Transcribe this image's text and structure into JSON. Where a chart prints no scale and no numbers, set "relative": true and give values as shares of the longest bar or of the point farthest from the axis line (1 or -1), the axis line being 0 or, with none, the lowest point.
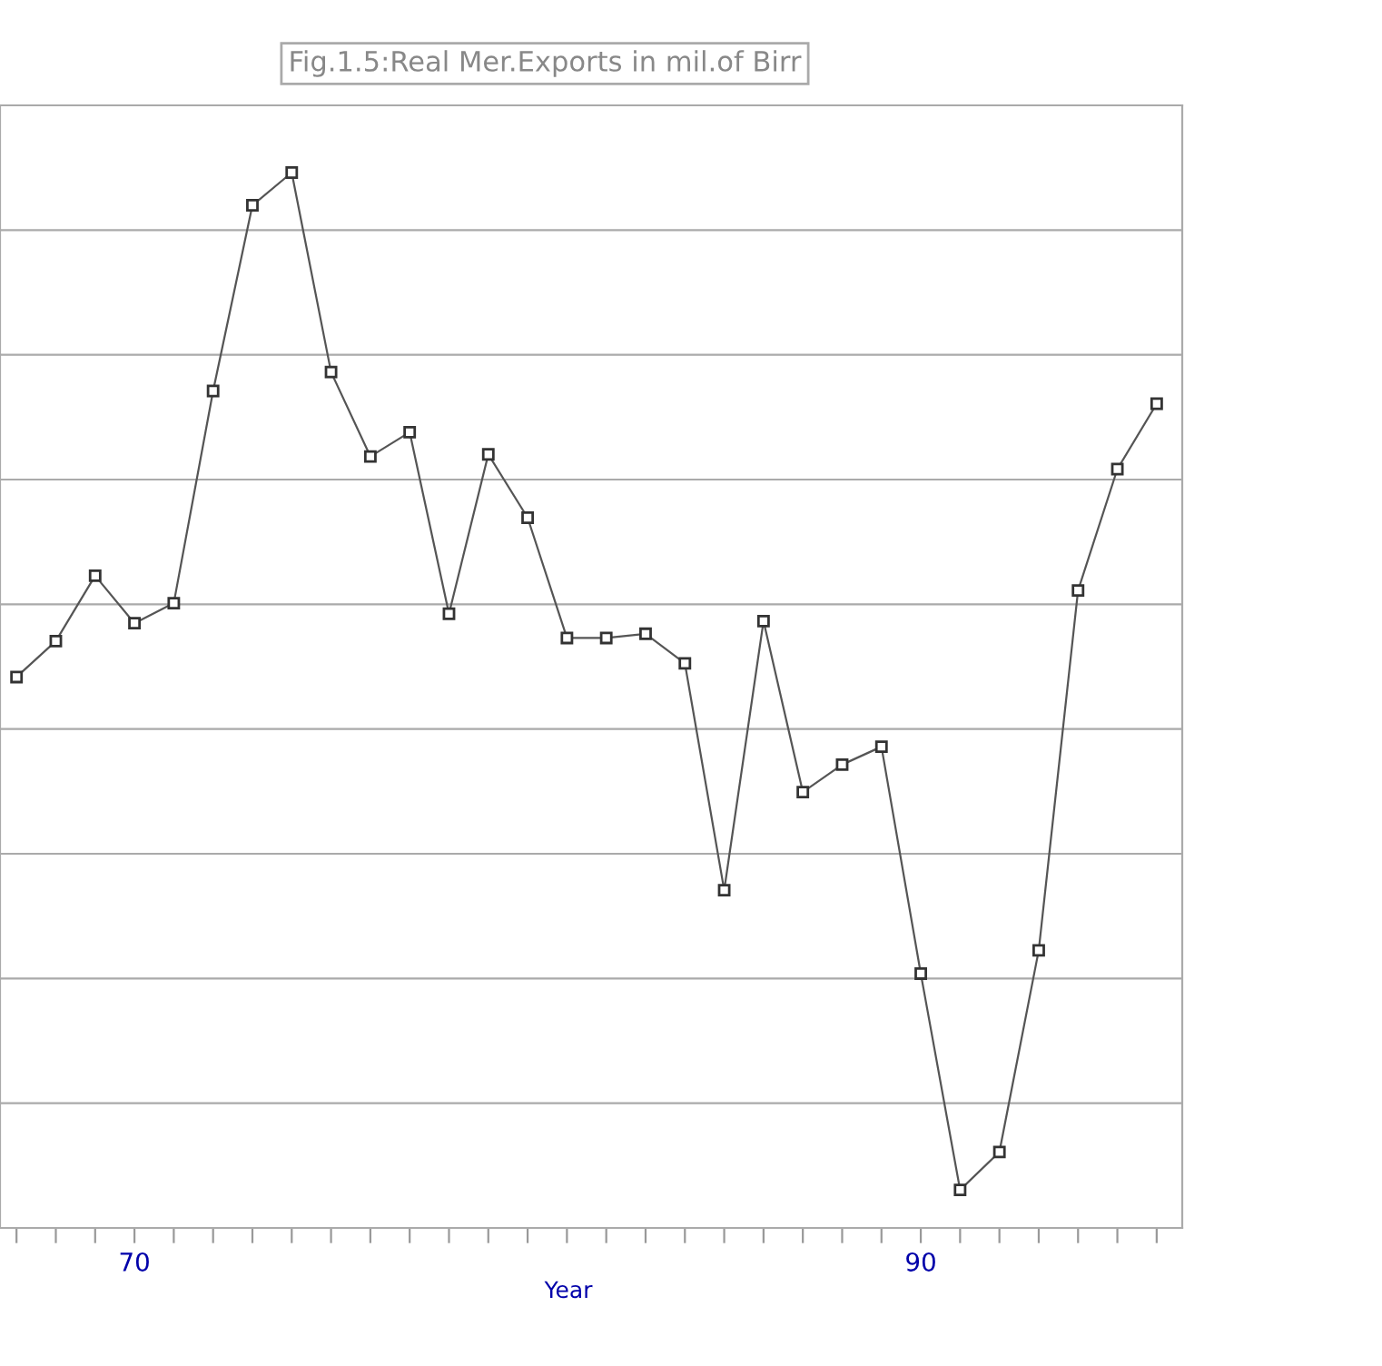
{
  "chart_data": {
    "type": "line",
    "title": "Fig.1.5:Real Mer.Exports in mil.of Birr",
    "xlabel": "Year",
    "relative": true,
    "x": [
      67,
      68,
      69,
      70,
      71,
      72,
      73,
      74,
      75,
      76,
      77,
      78,
      79,
      80,
      81,
      82,
      83,
      84,
      85,
      86,
      87,
      88,
      89,
      90,
      91,
      92,
      93,
      94,
      95,
      96
    ],
    "series": [
      {
        "color": "#555555",
        "values": [
          0.522,
          0.556,
          0.618,
          0.573,
          0.592,
          0.793,
          0.969,
          1,
          0.811,
          0.731,
          0.754,
          0.582,
          0.733,
          0.673,
          0.559,
          0.559,
          0.563,
          0.535,
          0.32,
          0.575,
          0.413,
          0.439,
          0.456,
          0.241,
          0.036,
          0.072,
          0.263,
          0.604,
          0.719,
          0.781
        ]
      }
    ],
    "xlim": [
      66.58,
      96.65
    ],
    "xticks": [
      {
        "value": 67,
        "label": null
      },
      {
        "value": 68,
        "label": null
      },
      {
        "value": 69,
        "label": null
      },
      70,
      {
        "value": 71,
        "label": null
      },
      {
        "value": 72,
        "label": null
      },
      {
        "value": 73,
        "label": null
      },
      {
        "value": 74,
        "label": null
      },
      {
        "value": 75,
        "label": null
      },
      {
        "value": 76,
        "label": null
      },
      {
        "value": 77,
        "label": null
      },
      {
        "value": 78,
        "label": null
      },
      {
        "value": 79,
        "label": null
      },
      {
        "value": 80,
        "label": null
      },
      {
        "value": 81,
        "label": null
      },
      {
        "value": 82,
        "label": null
      },
      {
        "value": 83,
        "label": null
      },
      {
        "value": 84,
        "label": null
      },
      {
        "value": 85,
        "label": null
      },
      {
        "value": 86,
        "label": null
      },
      {
        "value": 87,
        "label": null
      },
      {
        "value": 88,
        "label": null
      },
      {
        "value": 89,
        "label": null
      },
      90,
      {
        "value": 91,
        "label": null
      },
      {
        "value": 92,
        "label": null
      },
      {
        "value": 93,
        "label": null
      },
      {
        "value": 94,
        "label": null
      },
      {
        "value": 95,
        "label": null
      },
      {
        "value": 96,
        "label": null
      }
    ],
    "grid": "y",
    "marker": "square",
    "line_style": "solid",
    "legend": false
  }
}
